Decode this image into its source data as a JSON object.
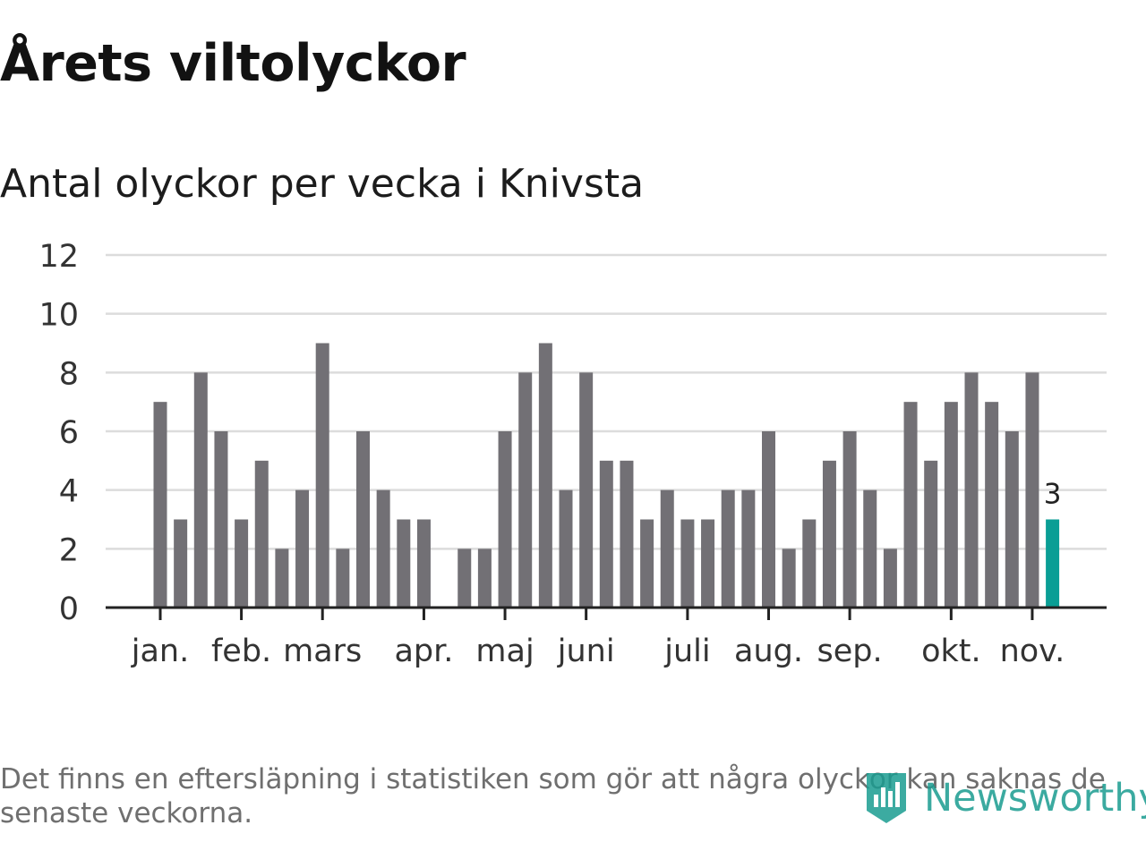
{
  "title": "Årets viltolyckor",
  "subtitle": "Antal olyckor per vecka i Knivsta",
  "note": "Det finns en eftersläpning i statistiken som gör att några olyckor kan saknas de senaste veckorna.",
  "brand": {
    "name": "Newsworthy",
    "color": "#1a9c90",
    "icon": "bar-chart-badge-icon"
  },
  "chart_data": {
    "type": "bar",
    "ylim": [
      0,
      12
    ],
    "yticks": [
      0,
      2,
      4,
      6,
      8,
      10,
      12
    ],
    "grid": true,
    "colors": {
      "bar": "#727075",
      "highlight": "#0a9e95",
      "grid": "#dcdcdc",
      "axis": "#222222",
      "text": "#333333"
    },
    "values": [
      7,
      3,
      8,
      6,
      3,
      5,
      2,
      4,
      9,
      2,
      6,
      4,
      3,
      3,
      0,
      2,
      2,
      6,
      8,
      9,
      4,
      8,
      5,
      5,
      3,
      4,
      3,
      3,
      4,
      4,
      6,
      2,
      3,
      5,
      6,
      4,
      2,
      7,
      5,
      7,
      8,
      7,
      6,
      8,
      3
    ],
    "highlight_index": 44,
    "highlight_label": "3",
    "month_labels": [
      {
        "label": "jan.",
        "week": 0
      },
      {
        "label": "feb.",
        "week": 4
      },
      {
        "label": "mars",
        "week": 8
      },
      {
        "label": "apr.",
        "week": 13
      },
      {
        "label": "maj",
        "week": 17
      },
      {
        "label": "juni",
        "week": 21
      },
      {
        "label": "juli",
        "week": 26
      },
      {
        "label": "aug.",
        "week": 30
      },
      {
        "label": "sep.",
        "week": 34
      },
      {
        "label": "okt.",
        "week": 39
      },
      {
        "label": "nov.",
        "week": 43
      }
    ]
  }
}
